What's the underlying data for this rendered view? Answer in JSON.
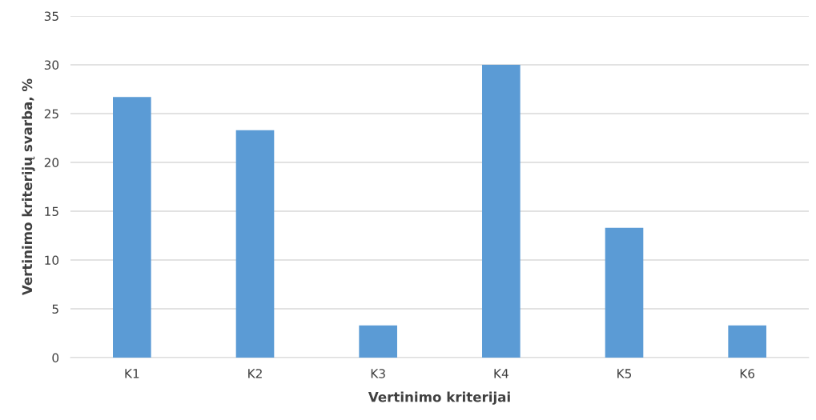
{
  "chart_data": {
    "type": "bar",
    "xlabel": "Vertinimo kriterijai",
    "ylabel": "Vertinimo kriterijų svarba, %",
    "categories": [
      "K1",
      "K2",
      "K3",
      "K4",
      "K5",
      "K6"
    ],
    "values": [
      26.7,
      23.3,
      3.3,
      30,
      13.3,
      3.3
    ],
    "color": "#5b9bd5",
    "ylim": [
      0,
      35
    ],
    "yticks": [
      0,
      5,
      10,
      15,
      20,
      25,
      30,
      35
    ],
    "grid": "y"
  }
}
